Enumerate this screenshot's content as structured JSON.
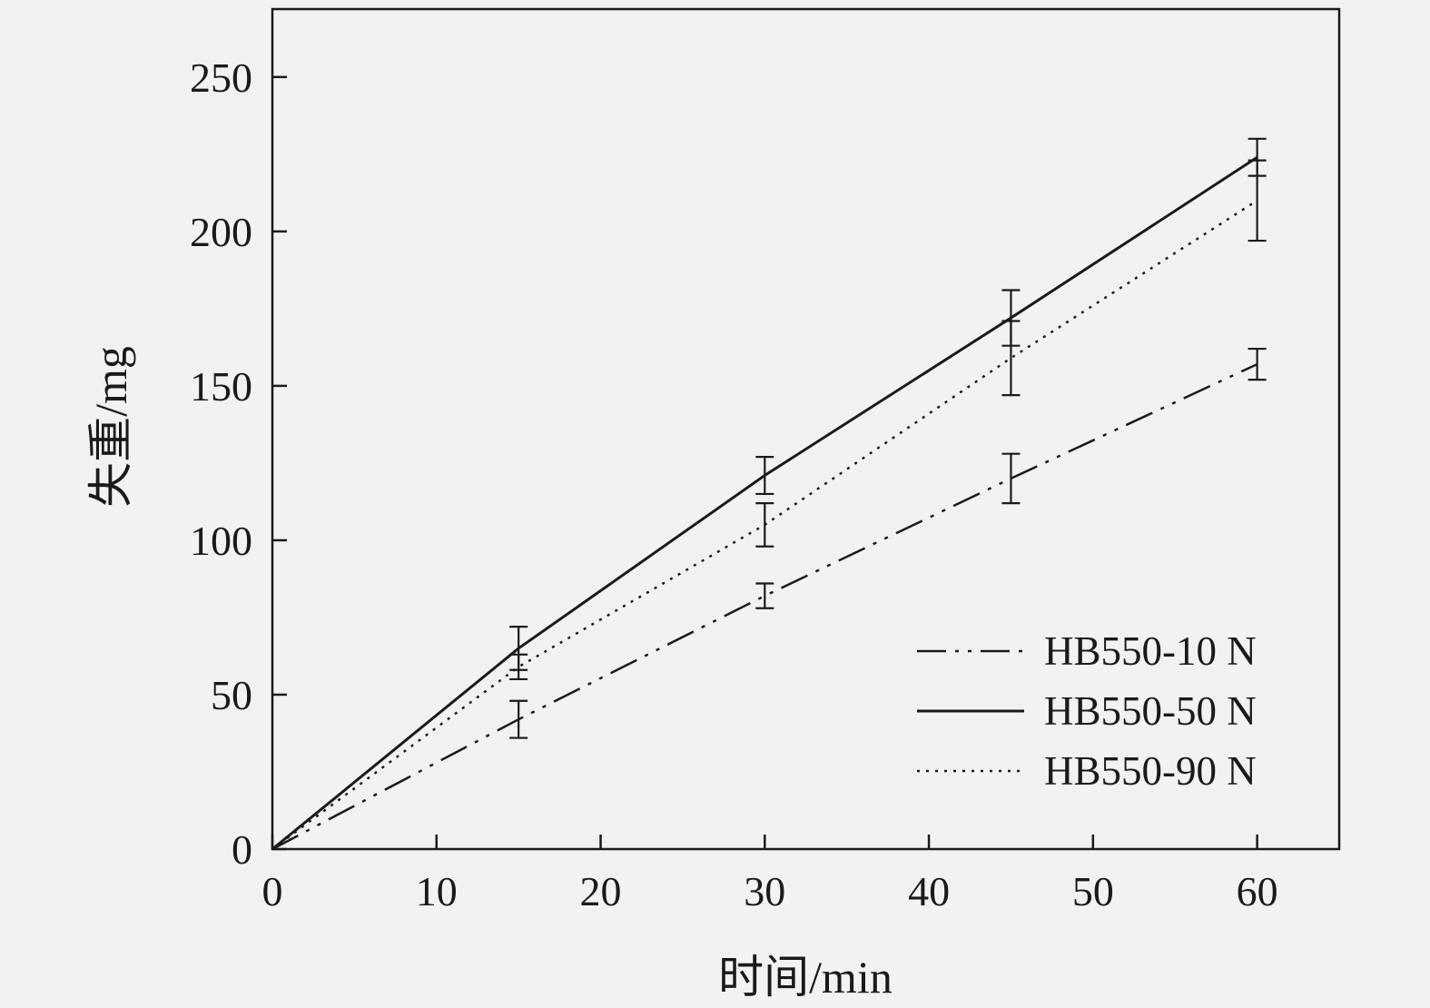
{
  "chart_data": {
    "type": "line",
    "title": "",
    "xlabel": "时间/min",
    "ylabel": "失重/mg",
    "x": [
      0,
      15,
      30,
      45,
      60
    ],
    "series": [
      {
        "name": "HB550-10 N",
        "style": "dashdotdot",
        "values": [
          0,
          42,
          82,
          120,
          157
        ],
        "errors": [
          0,
          6,
          4,
          8,
          5
        ]
      },
      {
        "name": "HB550-50 N",
        "style": "solid",
        "values": [
          0,
          65,
          121,
          172,
          224
        ],
        "errors": [
          0,
          7,
          6,
          9,
          6
        ]
      },
      {
        "name": "HB550-90 N",
        "style": "dotted",
        "values": [
          0,
          59,
          105,
          159,
          210
        ],
        "errors": [
          0,
          4,
          7,
          12,
          13
        ]
      }
    ],
    "xlim": [
      0,
      65
    ],
    "ylim": [
      0,
      272
    ],
    "xticks": [
      0,
      10,
      20,
      30,
      40,
      50,
      60
    ],
    "yticks": [
      0,
      50,
      100,
      150,
      200,
      250
    ],
    "grid": false,
    "legend_position": "lower-right-inside",
    "line_color": "#1a1a1a",
    "background": "#f2f2f2"
  }
}
